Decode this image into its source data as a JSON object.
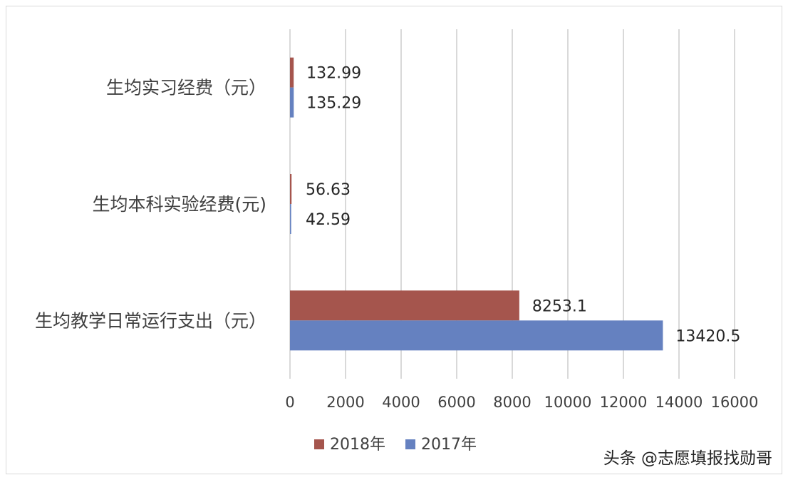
{
  "chart_data": {
    "type": "bar",
    "orientation": "horizontal",
    "categories": [
      "生均实习经费（元）",
      "生均本科实验经费(元)",
      "生均教学日常运行支出（元）"
    ],
    "series": [
      {
        "name": "2018年",
        "color": "#A5554D",
        "values": [
          132.99,
          56.63,
          8253.1
        ],
        "labels": [
          "132.99",
          "56.63",
          "8253.1"
        ]
      },
      {
        "name": "2017年",
        "color": "#6581C0",
        "values": [
          135.29,
          42.59,
          13420.5
        ],
        "labels": [
          "135.29",
          "42.59",
          "13420.5"
        ]
      }
    ],
    "xlim": [
      0,
      16000
    ],
    "xticks": [
      0,
      2000,
      4000,
      6000,
      8000,
      10000,
      12000,
      14000,
      16000
    ],
    "grid": true,
    "legend_position": "bottom"
  },
  "watermark": "头条 @志愿填报找勋哥"
}
